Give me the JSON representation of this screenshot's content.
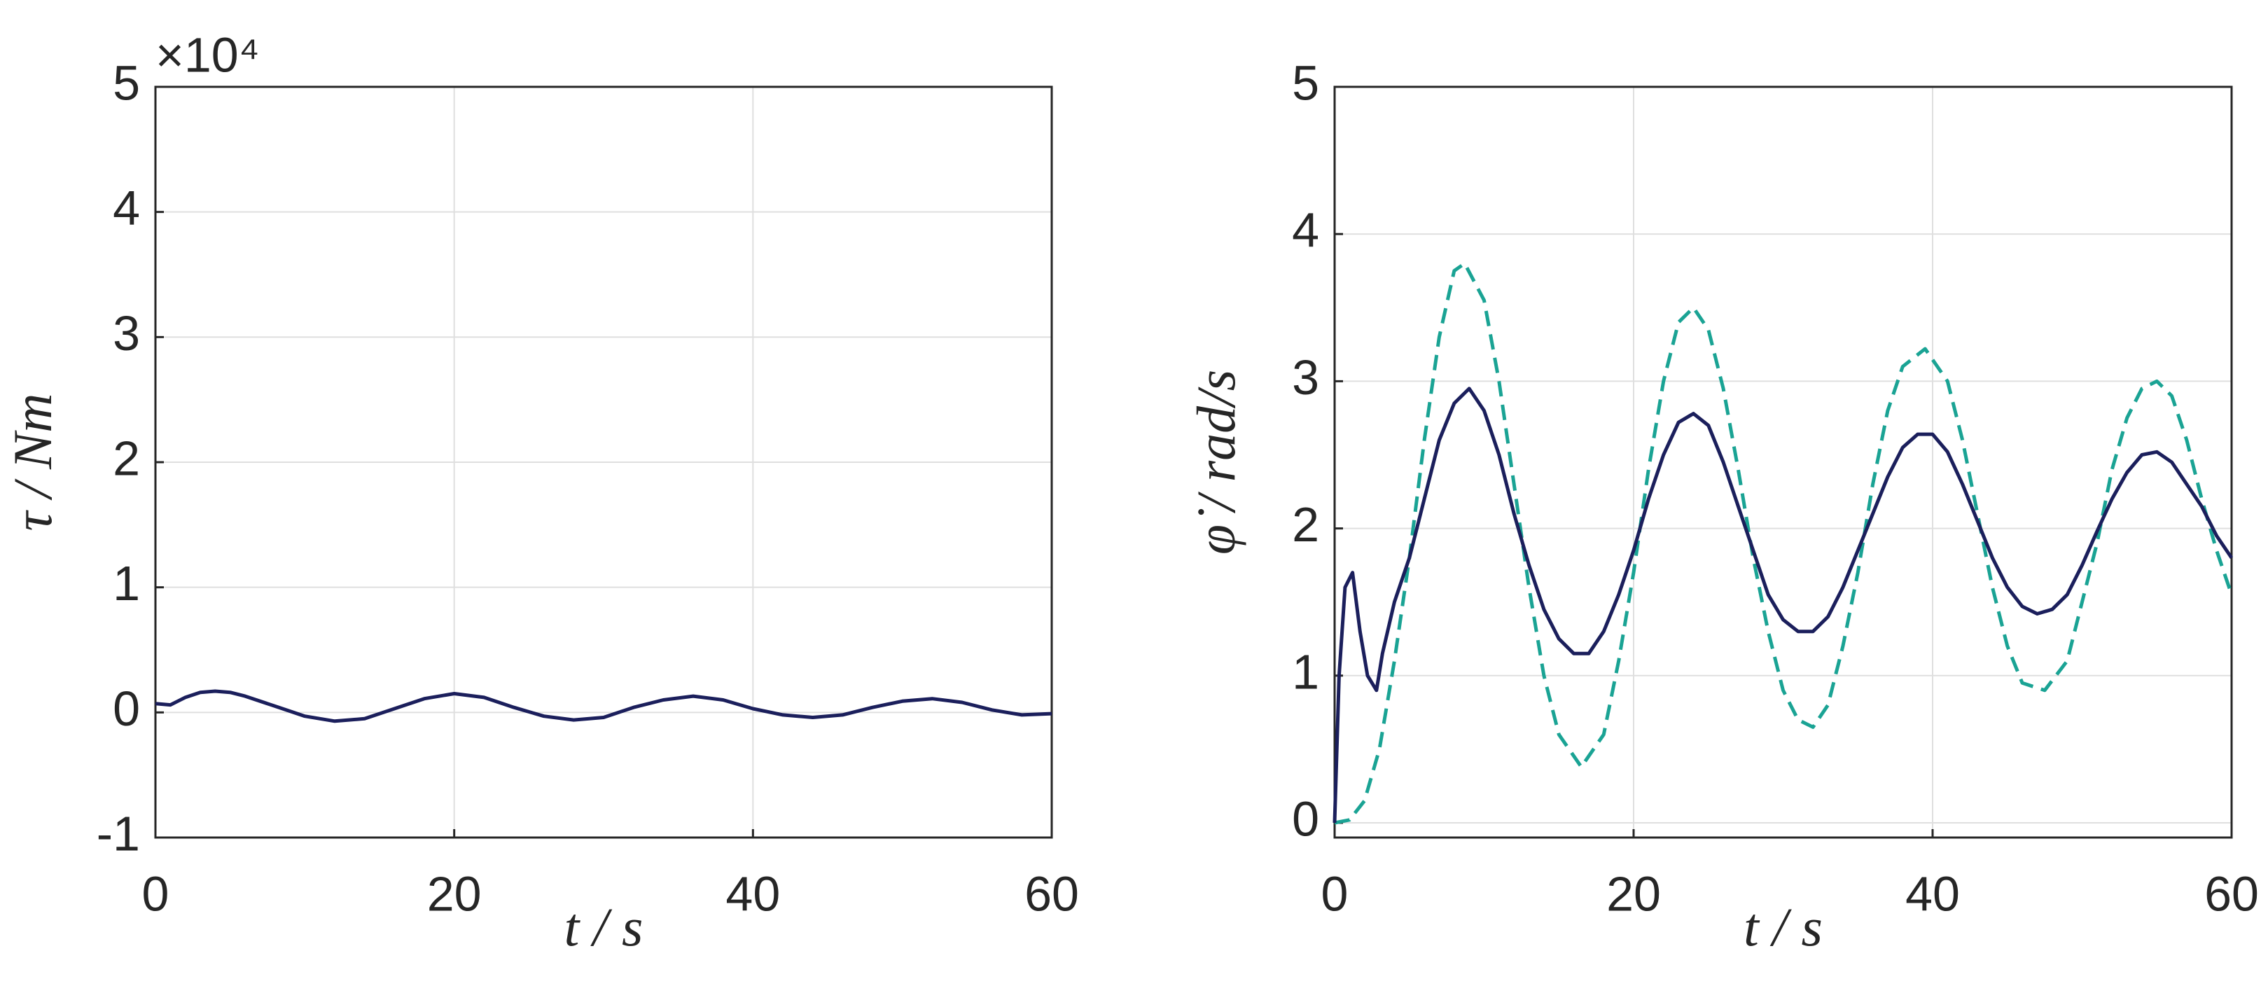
{
  "chart_data": [
    {
      "type": "line",
      "y_exponent": "×10⁴",
      "xlabel": "t / s",
      "ylabel": "τ / Nm",
      "xlim": [
        0,
        60
      ],
      "ylim": [
        -1,
        5
      ],
      "xticks": [
        0,
        20,
        40,
        60
      ],
      "yticks": [
        -1,
        0,
        1,
        2,
        3,
        4,
        5
      ],
      "grid": true,
      "series": [
        {
          "color": "#1b1f5c",
          "dash": false,
          "x": [
            0,
            1,
            2,
            3,
            4,
            5,
            6,
            8,
            10,
            12,
            14,
            16,
            18,
            20,
            22,
            24,
            26,
            28,
            30,
            32,
            34,
            36,
            38,
            40,
            42,
            44,
            46,
            48,
            50,
            52,
            54,
            56,
            58,
            60
          ],
          "values": [
            0.07,
            0.06,
            0.12,
            0.16,
            0.17,
            0.16,
            0.13,
            0.05,
            -0.03,
            -0.07,
            -0.05,
            0.03,
            0.11,
            0.15,
            0.12,
            0.04,
            -0.03,
            -0.06,
            -0.04,
            0.04,
            0.1,
            0.13,
            0.1,
            0.03,
            -0.02,
            -0.04,
            -0.02,
            0.04,
            0.09,
            0.11,
            0.08,
            0.02,
            -0.02,
            -0.01
          ]
        }
      ]
    },
    {
      "type": "line",
      "xlabel": "t / s",
      "ylabel": "φ̇ / rad/s",
      "xlim": [
        0,
        60
      ],
      "ylim": [
        -0.1,
        5
      ],
      "xticks": [
        0,
        20,
        40,
        60
      ],
      "yticks": [
        0,
        1,
        2,
        3,
        4,
        5
      ],
      "grid": true,
      "series": [
        {
          "color": "#1aa394",
          "dash": true,
          "x": [
            0,
            1,
            2,
            3,
            4,
            5,
            6,
            7,
            8,
            8.7,
            10,
            11,
            12,
            13,
            14,
            15,
            16.5,
            18,
            19,
            20,
            21,
            22,
            23,
            24,
            25,
            26,
            27,
            28,
            29,
            30,
            31,
            32,
            33,
            34,
            35,
            36,
            37,
            38,
            39.5,
            41,
            42,
            43,
            44,
            45,
            46,
            47.5,
            49,
            50,
            51,
            52,
            53,
            54,
            55,
            56,
            57,
            58,
            59,
            60
          ],
          "values": [
            0,
            0.02,
            0.15,
            0.5,
            1.1,
            1.8,
            2.6,
            3.3,
            3.75,
            3.8,
            3.55,
            3.0,
            2.3,
            1.6,
            1.0,
            0.6,
            0.38,
            0.6,
            1.1,
            1.7,
            2.4,
            3.0,
            3.4,
            3.5,
            3.35,
            2.95,
            2.4,
            1.8,
            1.3,
            0.9,
            0.7,
            0.65,
            0.8,
            1.2,
            1.7,
            2.3,
            2.8,
            3.1,
            3.22,
            3.0,
            2.6,
            2.1,
            1.6,
            1.2,
            0.95,
            0.9,
            1.1,
            1.5,
            1.9,
            2.4,
            2.75,
            2.95,
            3.0,
            2.9,
            2.6,
            2.2,
            1.85,
            1.55
          ]
        },
        {
          "color": "#1b1f5c",
          "dash": false,
          "x": [
            0,
            0.3,
            0.7,
            1.2,
            1.7,
            2.2,
            2.8,
            3.2,
            4,
            5,
            6,
            7,
            8,
            9,
            10,
            11,
            12,
            13,
            14,
            15,
            16,
            17,
            18,
            19,
            20,
            21,
            22,
            23,
            24,
            25,
            26,
            27,
            28,
            29,
            30,
            31,
            32,
            33,
            34,
            35,
            36,
            37,
            38,
            39,
            40,
            41,
            42,
            43,
            44,
            45,
            46,
            47,
            48,
            49,
            50,
            51,
            52,
            53,
            54,
            55,
            56,
            57,
            58,
            59,
            60
          ],
          "values": [
            0,
            1.0,
            1.6,
            1.7,
            1.3,
            1.0,
            0.9,
            1.15,
            1.5,
            1.8,
            2.2,
            2.6,
            2.85,
            2.95,
            2.8,
            2.5,
            2.1,
            1.75,
            1.45,
            1.25,
            1.15,
            1.15,
            1.3,
            1.55,
            1.85,
            2.2,
            2.5,
            2.72,
            2.78,
            2.7,
            2.45,
            2.15,
            1.85,
            1.55,
            1.38,
            1.3,
            1.3,
            1.4,
            1.6,
            1.85,
            2.1,
            2.35,
            2.55,
            2.64,
            2.64,
            2.52,
            2.3,
            2.05,
            1.8,
            1.6,
            1.47,
            1.42,
            1.45,
            1.55,
            1.75,
            1.98,
            2.2,
            2.38,
            2.5,
            2.52,
            2.45,
            2.3,
            2.15,
            1.95,
            1.8
          ]
        }
      ]
    }
  ]
}
